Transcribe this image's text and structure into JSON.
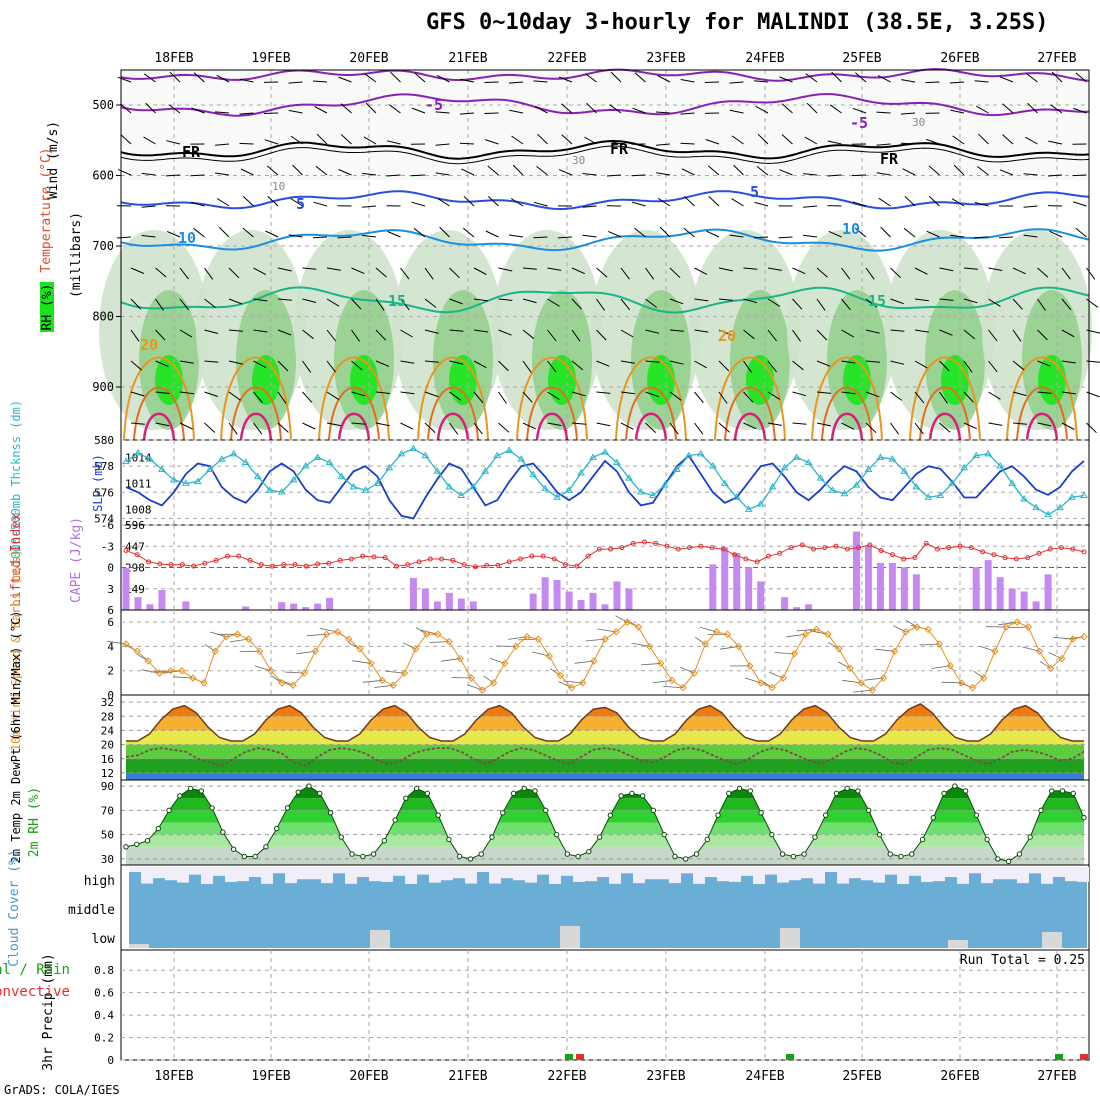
{
  "title": "GFS 0~10day 3-hourly for MALINDI (38.5E, 3.25S)",
  "footer": "GrADS: COLA/IGES",
  "dates": [
    "18FEB",
    "19FEB",
    "20FEB",
    "21FEB",
    "22FEB",
    "23FEB",
    "24FEB",
    "25FEB",
    "26FEB",
    "27FEB"
  ],
  "panels": {
    "upper": {
      "ylabels": [
        "Wind (m/s)",
        "Temperature (°C)",
        "RH (%)",
        "(millibars)"
      ],
      "yticks": [
        "500",
        "600",
        "700",
        "800",
        "900"
      ],
      "contour_labels": [
        "-5",
        "-5",
        "FR",
        "FR",
        "FR",
        "5",
        "5",
        "10",
        "10",
        "15",
        "15",
        "20",
        "20",
        "30",
        "30",
        "10"
      ]
    },
    "thickness": {
      "ylabel_left": "1000-500mb Thcknss (dm)",
      "ylabel_right": "SLP (mb)",
      "left_ticks": [
        "580",
        "578",
        "576",
        "574"
      ],
      "right_ticks": [
        "1014",
        "1011",
        "1008"
      ]
    },
    "cape": {
      "ylabel_left": "Lifted Index",
      "ylabel_right": "CAPE (J/kg)",
      "left_ticks": [
        "-6",
        "-3",
        "0",
        "3",
        "6"
      ],
      "right_ticks": [
        "596",
        "447",
        "298",
        "149"
      ]
    },
    "wind10": {
      "ylabel": "10m Wind Speed & Barbs (m/s)",
      "ticks": [
        "6",
        "4",
        "2",
        "0"
      ]
    },
    "temp2m": {
      "ylabel": "2m Temp 2m DewPt (6hr Min/Max) (°C)",
      "ticks": [
        "32",
        "28",
        "24",
        "20",
        "16",
        "12"
      ]
    },
    "rh2m": {
      "ylabel": "2m RH (%)",
      "ticks": [
        "90",
        "70",
        "50",
        "30"
      ]
    },
    "cloud": {
      "ylabel": "Cloud Cover (%)",
      "levels": [
        "high",
        "middle",
        "low"
      ]
    },
    "precip": {
      "ylabel_left": "Total / Rain Convective",
      "ylabel": "3hr Precip (mm)",
      "ticks": [
        "0.8",
        "0.6",
        "0.4",
        "0.2",
        "0"
      ],
      "run_total": "Run Total = 0.25"
    }
  },
  "colors": {
    "thickness": "#1a3fc8",
    "slp": "#2ab7c9",
    "lifted_index": "#e03030",
    "cape": "#c58af2",
    "wind": "#e69020",
    "rh_green": "#16a016",
    "cloud": "#6aaed6",
    "temp_orange": "#f28c1e"
  },
  "chart_data": [
    {
      "type": "line",
      "name": "thickness_slp",
      "x_unit": "3-hourly step from 17FEB 18Z",
      "series": [
        {
          "name": "1000-500mb Thcknss",
          "axis": "left",
          "values": [
            576.4,
            576.0,
            575.4,
            575.0,
            576.0,
            577.4,
            578.2,
            578.0,
            576.4,
            575.6,
            575.2,
            576.2,
            577.6,
            578.2,
            577.6,
            576.2,
            575.4,
            575.2,
            576.4,
            577.6,
            578.0,
            577.2,
            575.4,
            574.2,
            574.0,
            575.6,
            577.0,
            578.2,
            577.8,
            576.4,
            575.0,
            575.4,
            576.8,
            578.0,
            578.2,
            577.2,
            576.0,
            575.4,
            576.0,
            577.2,
            578.4,
            577.6,
            576.0,
            575.0,
            575.2,
            576.6,
            578.0,
            578.8,
            577.4,
            576.0,
            575.2,
            575.6,
            576.8,
            578.0,
            578.2,
            577.2,
            576.0,
            575.4,
            576.2,
            577.2,
            578.0,
            577.6,
            576.4,
            575.6,
            575.4,
            576.4,
            577.4,
            578.0,
            577.8,
            576.8,
            575.6,
            575.6,
            576.6,
            577.6,
            578.0,
            577.2,
            576.2,
            575.8,
            576.4,
            577.6,
            578.4
          ]
        },
        {
          "name": "SLP",
          "axis": "right",
          "values": [
            1013.5,
            1014.5,
            1013.8,
            1012.6,
            1011.4,
            1011.0,
            1011.2,
            1012.6,
            1013.8,
            1014.4,
            1013.4,
            1011.8,
            1010.2,
            1010.0,
            1011.4,
            1013.0,
            1014.0,
            1013.4,
            1011.8,
            1010.6,
            1010.2,
            1011.0,
            1012.8,
            1014.4,
            1015.0,
            1014.2,
            1012.4,
            1010.6,
            1009.6,
            1010.6,
            1012.4,
            1014.2,
            1014.8,
            1013.8,
            1012.0,
            1010.4,
            1009.4,
            1010.2,
            1012.2,
            1014.0,
            1014.6,
            1013.4,
            1011.6,
            1010.0,
            1009.6,
            1010.8,
            1012.6,
            1014.2,
            1014.4,
            1013.0,
            1011.0,
            1009.4,
            1008.0,
            1008.6,
            1010.6,
            1012.8,
            1014.0,
            1013.4,
            1011.6,
            1010.2,
            1009.8,
            1010.8,
            1012.6,
            1014.0,
            1013.8,
            1012.4,
            1010.6,
            1009.4,
            1009.6,
            1011.0,
            1012.8,
            1014.2,
            1014.4,
            1013.0,
            1011.0,
            1009.2,
            1008.2,
            1007.4,
            1008.2,
            1009.4,
            1009.6
          ]
        }
      ],
      "ylim_left": [
        573.5,
        580
      ],
      "ylim_right": [
        1006.2,
        1016
      ]
    },
    {
      "type": "bar",
      "name": "cape_lifted_index",
      "series": [
        {
          "name": "CAPE",
          "unit": "J/kg",
          "values": [
            296,
            90,
            40,
            140,
            0,
            60,
            0,
            0,
            0,
            0,
            25,
            0,
            0,
            55,
            45,
            20,
            45,
            85,
            0,
            0,
            0,
            0,
            0,
            0,
            225,
            150,
            60,
            120,
            80,
            60,
            0,
            0,
            0,
            0,
            115,
            230,
            210,
            130,
            70,
            120,
            40,
            200,
            150,
            0,
            0,
            0,
            0,
            0,
            0,
            320,
            440,
            400,
            300,
            200,
            0,
            90,
            20,
            40,
            0,
            0,
            0,
            550,
            450,
            330,
            330,
            300,
            250,
            0,
            0,
            0,
            0,
            300,
            350,
            230,
            150,
            130,
            60,
            250,
            0,
            0,
            0
          ]
        },
        {
          "name": "Lifted Index",
          "unit": "",
          "values": [
            -2.4,
            -1.8,
            -0.8,
            -0.5,
            -0.4,
            -0.4,
            -0.2,
            -0.6,
            -1.0,
            -1.6,
            -1.6,
            -1.0,
            -0.4,
            -0.2,
            -0.4,
            -0.4,
            -0.2,
            -0.5,
            -0.6,
            -1.0,
            -1.2,
            -1.6,
            -1.5,
            -1.4,
            -0.2,
            -0.4,
            -0.8,
            -1.2,
            -1.2,
            -1.0,
            -0.4,
            -0.1,
            -0.3,
            -0.3,
            -0.8,
            -1.2,
            -1.6,
            -1.6,
            -1.2,
            -0.4,
            -0.2,
            -1.6,
            -2.6,
            -2.6,
            -2.8,
            -3.4,
            -3.6,
            -3.4,
            -3.0,
            -2.6,
            -2.8,
            -3.0,
            -2.8,
            -2.6,
            -1.8,
            -1.2,
            -0.8,
            -1.6,
            -2.0,
            -2.8,
            -3.2,
            -2.6,
            -2.8,
            -3.0,
            -2.6,
            -2.8,
            -3.2,
            -2.4,
            -1.8,
            -1.2,
            -1.4,
            -3.4,
            -2.6,
            -2.8,
            -3.0,
            -2.8,
            -2.2,
            -1.8,
            -1.4,
            -1.2,
            -1.4,
            -2.0,
            -2.6,
            -2.8,
            -2.6,
            -2.2
          ]
        }
      ],
      "ylim_cape": [
        0,
        596
      ],
      "ylim_li": [
        6,
        -6
      ]
    },
    {
      "type": "line",
      "name": "wind10m",
      "unit": "m/s",
      "values": [
        4.2,
        3.6,
        2.8,
        1.8,
        2.0,
        2.0,
        1.4,
        1.0,
        3.6,
        4.8,
        5.0,
        4.6,
        3.6,
        2.0,
        1.0,
        0.8,
        1.8,
        3.6,
        5.0,
        5.2,
        4.6,
        3.8,
        2.6,
        1.2,
        0.8,
        1.8,
        3.8,
        5.0,
        5.0,
        4.4,
        3.0,
        1.4,
        0.4,
        1.0,
        2.6,
        4.0,
        4.8,
        4.6,
        3.2,
        1.6,
        0.6,
        1.0,
        2.8,
        4.6,
        5.2,
        6.0,
        5.6,
        4.0,
        2.6,
        1.2,
        0.6,
        1.8,
        4.2,
        5.2,
        5.0,
        4.0,
        2.4,
        1.0,
        0.6,
        1.4,
        3.4,
        5.0,
        5.4,
        5.0,
        3.8,
        2.2,
        1.0,
        0.4,
        1.4,
        3.6,
        5.2,
        5.6,
        5.4,
        4.2,
        2.4,
        1.0,
        0.6,
        1.4,
        3.6,
        5.6,
        6.0,
        5.6,
        3.6,
        2.2,
        3.0,
        4.6,
        4.8
      ],
      "ylim": [
        0,
        7
      ]
    },
    {
      "type": "area",
      "name": "temp2m_dewpoint",
      "unit": "°C",
      "series": [
        {
          "name": "2m Temp",
          "values": [
            21,
            21,
            23,
            27,
            30,
            31,
            29,
            25,
            22,
            21,
            21,
            23,
            27,
            30,
            31,
            29,
            25,
            22,
            21,
            21,
            23,
            27,
            30,
            31,
            29,
            25,
            22,
            21,
            21,
            23,
            27,
            30,
            31,
            29,
            25,
            22,
            21,
            21,
            23,
            27,
            30,
            30.5,
            29,
            25,
            22,
            21,
            21,
            23,
            27,
            30,
            31,
            29,
            25,
            22,
            21,
            21,
            23,
            27,
            30,
            31,
            29,
            25,
            22,
            21,
            21,
            23,
            27,
            30,
            31.5,
            29,
            25,
            22,
            21,
            21,
            23,
            27,
            30,
            31,
            29,
            25,
            22,
            21,
            21
          ]
        },
        {
          "name": "2m DewPt",
          "values": [
            16.5,
            17.0,
            18.5,
            19.0,
            18.5,
            18.0,
            16.0,
            15.0,
            14.0,
            16.0,
            18.0,
            19.0,
            18.5,
            17.5,
            15.0,
            14.0,
            16.5,
            18.5,
            19.0,
            18.5,
            17.5,
            15.5,
            14.5,
            15.5,
            17.5,
            18.5,
            19.0,
            19.0,
            18.0,
            16.0,
            14.5,
            16.0,
            18.0,
            19.0,
            18.5,
            17.0,
            15.5,
            14.5,
            16.5,
            18.5,
            19.0,
            18.5,
            17.0,
            15.5,
            15.0,
            16.5,
            18.5,
            19.0,
            18.5,
            17.0,
            15.5,
            14.5,
            16.0,
            18.0,
            19.0,
            18.5,
            17.0,
            15.5,
            14.5,
            16.0,
            18.0,
            19.0,
            18.5,
            17.0,
            15.0,
            14.5,
            16.5,
            18.5,
            19.0,
            18.5,
            17.0,
            15.5,
            14.5,
            16.0,
            18.0,
            18.5,
            18.0,
            17.0,
            15.5,
            16.0,
            18.0
          ]
        }
      ],
      "ylim": [
        10,
        34
      ]
    },
    {
      "type": "area",
      "name": "rh2m",
      "unit": "%",
      "values": [
        40,
        42,
        45,
        55,
        70,
        82,
        88,
        86,
        72,
        52,
        38,
        32,
        32,
        40,
        55,
        72,
        85,
        90,
        84,
        68,
        48,
        34,
        32,
        34,
        45,
        62,
        80,
        88,
        84,
        66,
        46,
        32,
        30,
        34,
        48,
        68,
        84,
        88,
        86,
        70,
        50,
        34,
        32,
        36,
        48,
        66,
        82,
        84,
        82,
        70,
        50,
        32,
        30,
        34,
        46,
        66,
        84,
        88,
        86,
        68,
        50,
        34,
        32,
        34,
        48,
        66,
        84,
        88,
        86,
        70,
        50,
        34,
        32,
        34,
        46,
        64,
        84,
        90,
        86,
        66,
        46,
        30,
        28,
        34,
        48,
        70,
        86,
        86,
        84,
        64
      ]
    }
  ]
}
